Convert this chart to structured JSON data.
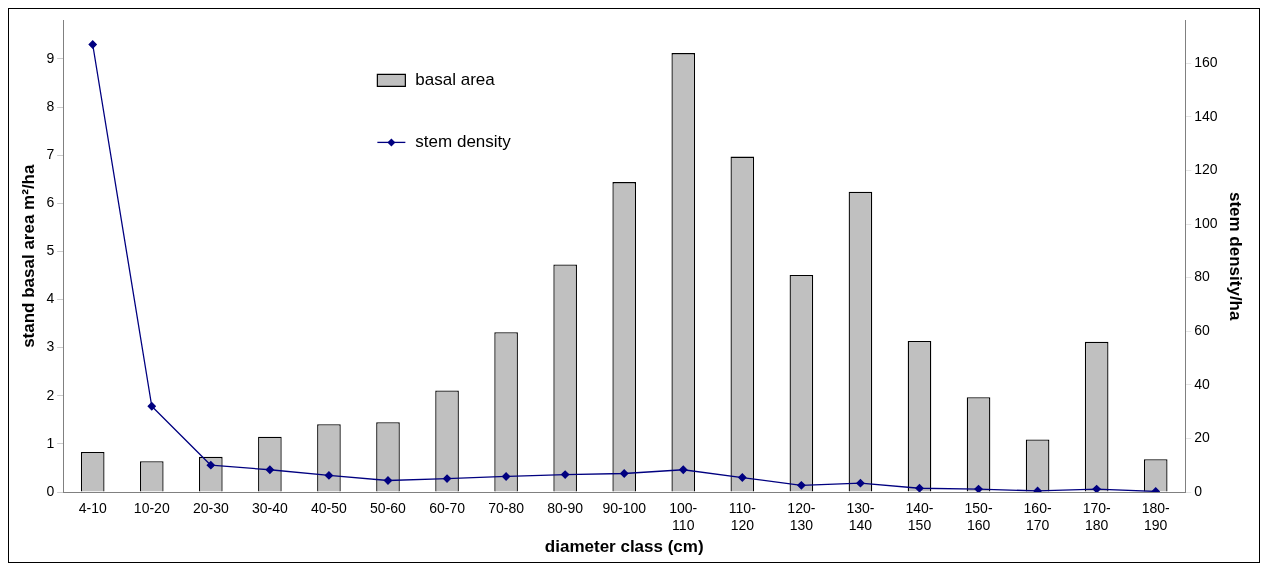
{
  "chart_data": {
    "type": "bar",
    "xlabel": "diameter class (cm)",
    "ylabel": "stand basal area m²/ha",
    "y2label": "stem density/ha",
    "categories": [
      "4-10",
      "10-20",
      "20-30",
      "30-40",
      "40-50",
      "50-60",
      "60-70",
      "70-80",
      "80-90",
      "90-100",
      "100-110",
      "110-120",
      "120-130",
      "130-140",
      "140-150",
      "150-160",
      "160-170",
      "170-180",
      "180-190"
    ],
    "series": [
      {
        "name": "basal area",
        "color": "#c0c0c0",
        "values": [
          0.83,
          0.64,
          0.73,
          1.15,
          1.41,
          1.45,
          2.11,
          3.32,
          4.73,
          6.44,
          9.12,
          6.97,
          4.51,
          6.24,
          3.14,
          1.97,
          1.09,
          3.12,
          0.68
        ]
      },
      {
        "name": "stem density",
        "type": "line",
        "axis": "y2",
        "color": "#000080",
        "values": [
          167,
          32,
          10,
          8.3,
          6.2,
          4.3,
          5,
          5.8,
          6.5,
          6.9,
          8.3,
          5.4,
          2.5,
          3.3,
          1.4,
          1.1,
          0.4,
          1.1,
          0.2
        ]
      }
    ],
    "ylim": [
      0,
      9.8
    ],
    "yticks": [
      0,
      1,
      2,
      3,
      4,
      5,
      6,
      7,
      8,
      9
    ],
    "y2lim": [
      0,
      176
    ],
    "y2ticks": [
      0,
      20,
      40,
      60,
      80,
      100,
      120,
      140,
      160
    ],
    "legend": "top",
    "marker": "diamond",
    "grid": false
  }
}
